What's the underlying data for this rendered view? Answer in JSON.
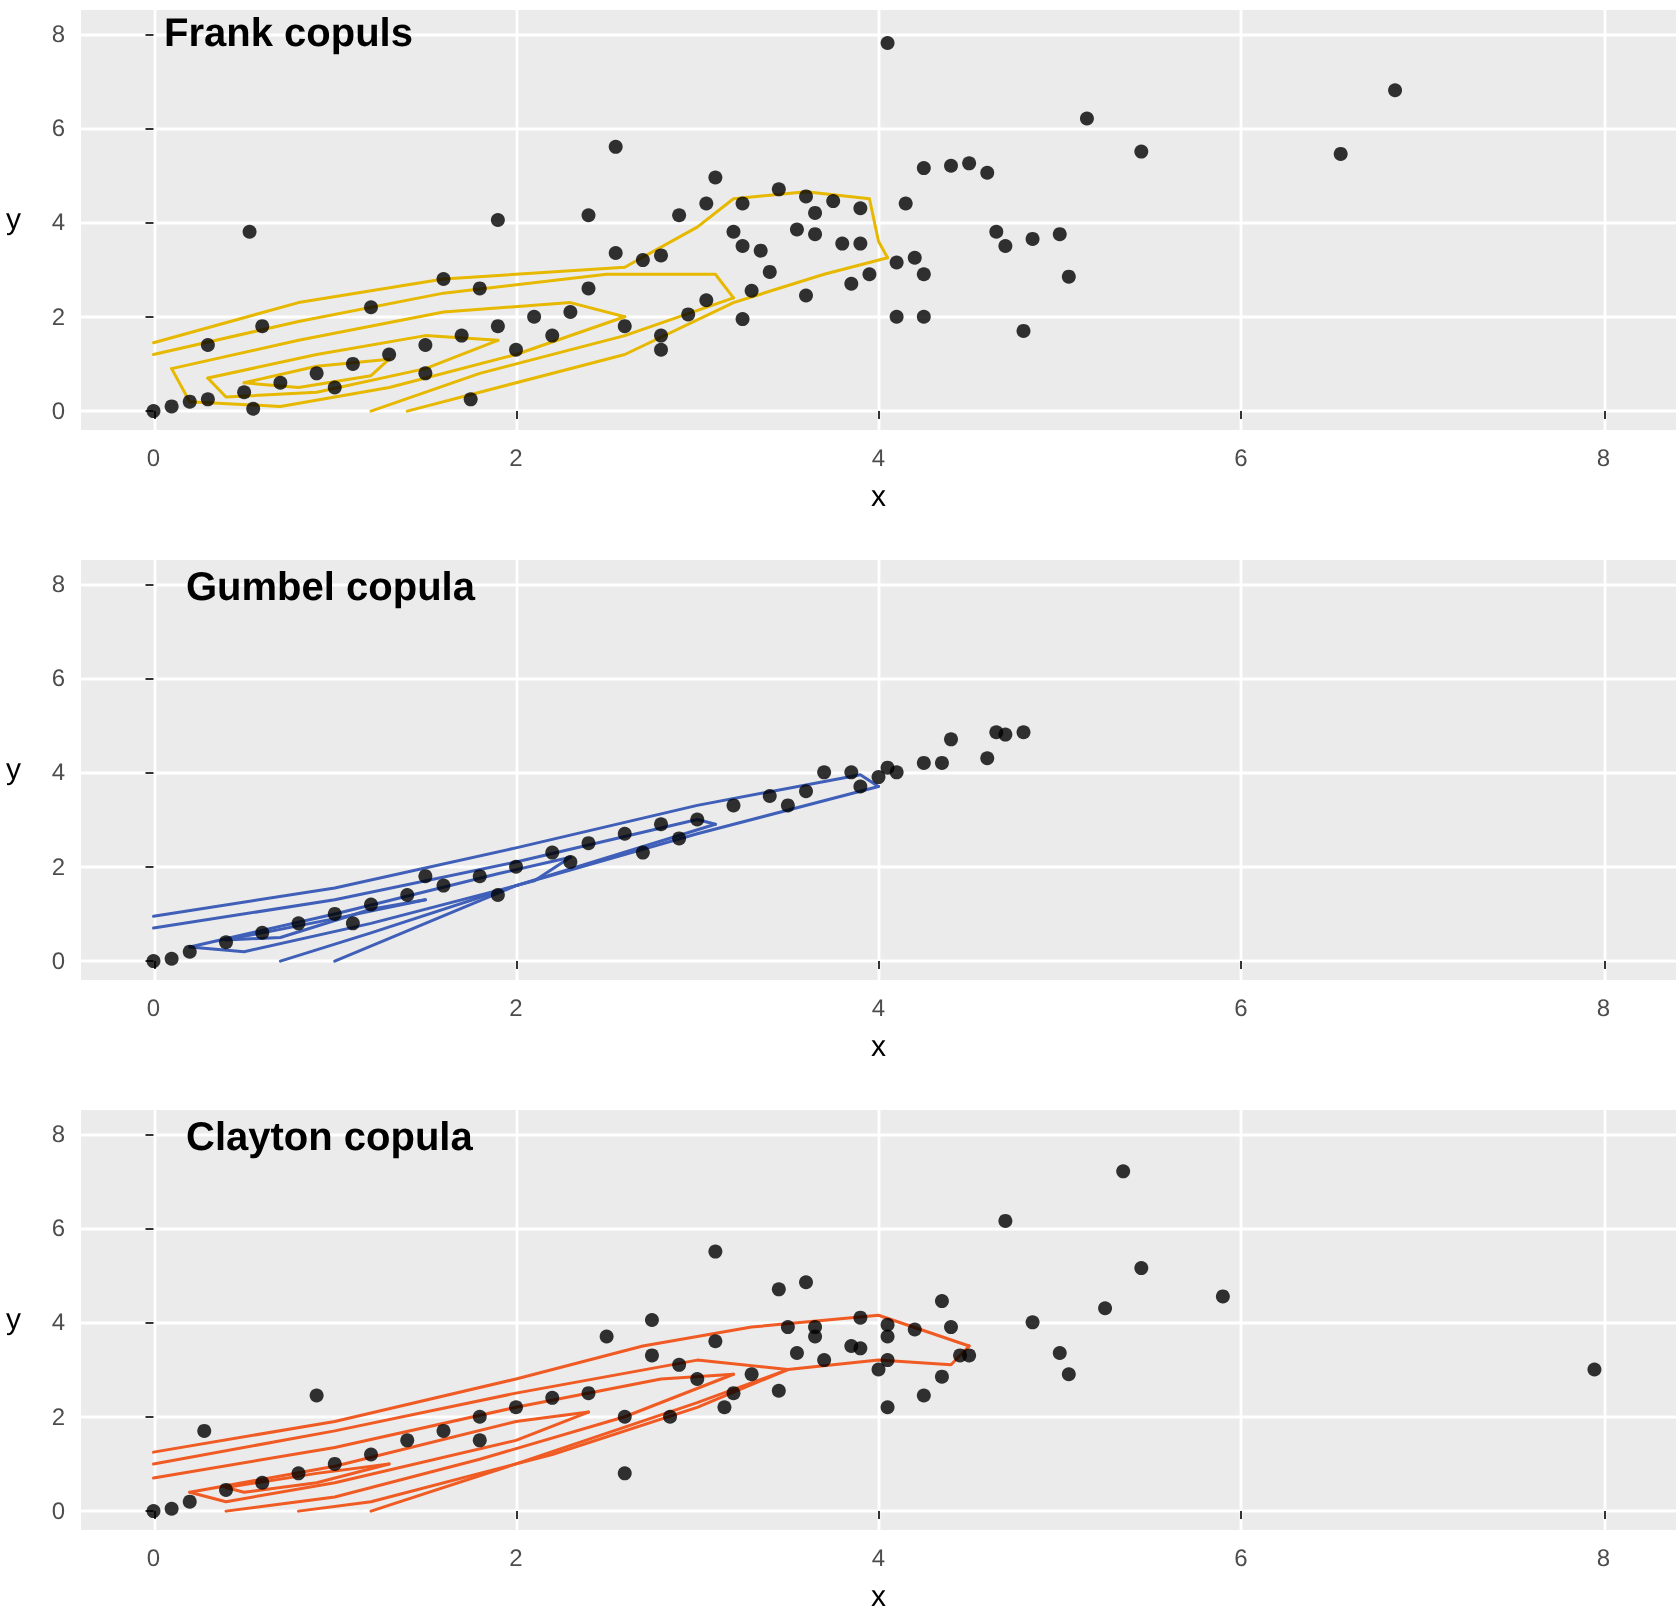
{
  "chart_data": [
    {
      "type": "scatter",
      "title": "Frank copuls",
      "xlabel": "x",
      "ylabel": "y",
      "xlim": [
        -0.4,
        8.4
      ],
      "ylim": [
        -0.4,
        8.5
      ],
      "xticks": [
        0,
        2,
        4,
        6,
        8
      ],
      "yticks": [
        0,
        2,
        4,
        6,
        8
      ],
      "grid": true,
      "marker": "circle",
      "series": [
        {
          "type": "line",
          "color": "#e7b800",
          "marker": "none",
          "x": [
            0,
            0.8,
            1.6,
            2.6,
            3.0,
            3.2,
            3.6,
            3.95,
            4.0,
            4.05
          ],
          "values": [
            1.45,
            2.3,
            2.8,
            3.05,
            3.9,
            4.5,
            4.65,
            4.5,
            3.6,
            3.25
          ]
        },
        {
          "type": "line",
          "color": "#e7b800",
          "marker": "none",
          "x": [
            1.4,
            2.6,
            3.2,
            3.7,
            4.05
          ],
          "values": [
            0.0,
            1.2,
            2.3,
            2.9,
            3.25
          ]
        },
        {
          "type": "line",
          "color": "#e7b800",
          "marker": "none",
          "x": [
            0,
            0.8,
            1.6,
            2.5,
            3.1,
            3.2
          ],
          "values": [
            1.2,
            1.9,
            2.5,
            2.9,
            2.9,
            2.4
          ]
        },
        {
          "type": "line",
          "color": "#e7b800",
          "marker": "none",
          "x": [
            1.2,
            1.8,
            2.6,
            3.2
          ],
          "values": [
            0.0,
            0.8,
            1.6,
            2.4
          ]
        },
        {
          "type": "line",
          "color": "#e7b800",
          "marker": "none",
          "x": [
            0.1,
            0.8,
            1.6,
            2.3,
            2.6
          ],
          "values": [
            0.9,
            1.5,
            2.1,
            2.3,
            2.0
          ]
        },
        {
          "type": "line",
          "color": "#e7b800",
          "marker": "none",
          "x": [
            0.1,
            0.2,
            0.7,
            1.3,
            2.0,
            2.6
          ],
          "values": [
            0.9,
            0.2,
            0.1,
            0.5,
            1.2,
            2.0
          ]
        },
        {
          "type": "line",
          "color": "#e7b800",
          "marker": "none",
          "x": [
            0.3,
            0.9,
            1.5,
            1.9
          ],
          "values": [
            0.7,
            1.2,
            1.6,
            1.5
          ]
        },
        {
          "type": "line",
          "color": "#e7b800",
          "marker": "none",
          "x": [
            0.3,
            0.4,
            0.9,
            1.5,
            1.9
          ],
          "values": [
            0.7,
            0.3,
            0.4,
            0.9,
            1.5
          ]
        },
        {
          "type": "line",
          "color": "#e7b800",
          "marker": "none",
          "x": [
            0.5,
            0.9,
            1.3
          ],
          "values": [
            0.6,
            0.95,
            1.1
          ]
        },
        {
          "type": "line",
          "color": "#e7b800",
          "marker": "none",
          "x": [
            0.5,
            0.8,
            1.2,
            1.3
          ],
          "values": [
            0.6,
            0.5,
            0.75,
            1.1
          ]
        },
        {
          "color": "#000000",
          "x": [
            0.53,
            1.9,
            2.55,
            2.4,
            3.1,
            3.05,
            3.45,
            3.6,
            3.75,
            3.9,
            3.65,
            3.25,
            3.2,
            3.25,
            3.35,
            3.55,
            3.65,
            3.8,
            4.05,
            4.15,
            4.25,
            4.4,
            4.5,
            4.6,
            4.65,
            4.7,
            4.85,
            5.0,
            5.05,
            4.8,
            4.1,
            4.25,
            4.25,
            4.1,
            4.2,
            3.9,
            3.95,
            3.85,
            3.6,
            3.4,
            3.3,
            3.25,
            3.05,
            2.95,
            2.8,
            2.8,
            2.6,
            2.55,
            2.7,
            2.8,
            2.9,
            5.15,
            5.45,
            6.55,
            6.85,
            1.75,
            0.0,
            0.1,
            0.3,
            0.5,
            0.7,
            0.9,
            1.1,
            1.3,
            1.5,
            1.7,
            1.9,
            2.1,
            2.3,
            0.6,
            0.3,
            1.2,
            1.6,
            1.0,
            1.5,
            2.0,
            0.55,
            0.2,
            1.8,
            2.4,
            2.2
          ],
          "values": [
            3.8,
            4.05,
            5.6,
            4.15,
            4.95,
            4.4,
            4.7,
            4.55,
            4.45,
            4.3,
            4.2,
            4.4,
            3.8,
            3.5,
            3.4,
            3.85,
            3.75,
            3.55,
            7.8,
            4.4,
            5.15,
            5.2,
            5.25,
            5.05,
            3.8,
            3.5,
            3.65,
            3.75,
            2.85,
            1.7,
            2.0,
            2.0,
            2.9,
            3.15,
            3.25,
            3.55,
            2.9,
            2.7,
            2.45,
            2.95,
            2.55,
            1.95,
            2.35,
            2.05,
            1.6,
            1.3,
            1.8,
            3.35,
            3.2,
            3.3,
            4.15,
            6.2,
            5.5,
            5.45,
            6.8,
            0.25,
            0.0,
            0.1,
            0.25,
            0.4,
            0.6,
            0.8,
            1.0,
            1.2,
            1.4,
            1.6,
            1.8,
            2.0,
            2.1,
            1.8,
            1.4,
            2.2,
            2.8,
            0.5,
            0.8,
            1.3,
            0.05,
            0.2,
            2.6,
            2.6,
            1.6
          ]
        }
      ]
    },
    {
      "type": "scatter",
      "title": "Gumbel copula",
      "xlabel": "x",
      "ylabel": "y",
      "xlim": [
        -0.4,
        8.4
      ],
      "ylim": [
        -0.4,
        8.5
      ],
      "xticks": [
        0,
        2,
        4,
        6,
        8
      ],
      "yticks": [
        0,
        2,
        4,
        6,
        8
      ],
      "grid": true,
      "marker": "circle",
      "series": [
        {
          "type": "line",
          "color": "#3f5fb8",
          "marker": "none",
          "x": [
            0,
            1,
            2,
            3,
            3.9,
            4.0
          ],
          "values": [
            0.95,
            1.55,
            2.4,
            3.3,
            3.95,
            3.7
          ]
        },
        {
          "type": "line",
          "color": "#3f5fb8",
          "marker": "none",
          "x": [
            1.0,
            1.5,
            2.0,
            3.0,
            4.0
          ],
          "values": [
            0.0,
            0.8,
            1.6,
            2.7,
            3.7
          ]
        },
        {
          "type": "line",
          "color": "#3f5fb8",
          "marker": "none",
          "x": [
            0,
            1,
            2,
            3,
            3.1
          ],
          "values": [
            0.7,
            1.3,
            2.1,
            3.0,
            2.9
          ]
        },
        {
          "type": "line",
          "color": "#3f5fb8",
          "marker": "none",
          "x": [
            0.7,
            1.2,
            2.0,
            3.1
          ],
          "values": [
            0.0,
            0.6,
            1.6,
            2.9
          ]
        },
        {
          "type": "line",
          "color": "#3f5fb8",
          "marker": "none",
          "x": [
            0.2,
            1.0,
            1.9,
            2.3
          ],
          "values": [
            0.3,
            1.0,
            1.85,
            2.2
          ]
        },
        {
          "type": "line",
          "color": "#3f5fb8",
          "marker": "none",
          "x": [
            0.2,
            0.5,
            1.2,
            2.1,
            2.3
          ],
          "values": [
            0.3,
            0.2,
            0.8,
            1.7,
            2.2
          ]
        },
        {
          "type": "line",
          "color": "#3f5fb8",
          "marker": "none",
          "x": [
            0.4,
            1.0,
            1.5
          ],
          "values": [
            0.45,
            0.9,
            1.3
          ]
        },
        {
          "type": "line",
          "color": "#3f5fb8",
          "marker": "none",
          "x": [
            0.4,
            0.7,
            1.2,
            1.5
          ],
          "values": [
            0.45,
            0.5,
            1.1,
            1.3
          ]
        },
        {
          "color": "#000000",
          "x": [
            4.8,
            4.65,
            4.7,
            4.6,
            4.4,
            4.35,
            4.25,
            4.1,
            4.05,
            4.0,
            3.9,
            3.85,
            3.7,
            3.6,
            3.4,
            3.2,
            3.0,
            2.9,
            2.8,
            2.6,
            2.4,
            2.2,
            2.0,
            1.8,
            1.6,
            1.4,
            1.2,
            1.0,
            0.8,
            0.6,
            0.4,
            0.2,
            0,
            1.9,
            2.7,
            1.5,
            3.5,
            0.1,
            1.1,
            2.3
          ],
          "values": [
            4.85,
            4.85,
            4.8,
            4.3,
            4.7,
            4.2,
            4.2,
            4.0,
            4.1,
            3.9,
            3.7,
            4.0,
            4.0,
            3.6,
            3.5,
            3.3,
            3.0,
            2.6,
            2.9,
            2.7,
            2.5,
            2.3,
            2.0,
            1.8,
            1.6,
            1.4,
            1.2,
            1.0,
            0.8,
            0.6,
            0.4,
            0.2,
            0,
            1.4,
            2.3,
            1.8,
            3.3,
            0.05,
            0.8,
            2.1
          ]
        }
      ]
    },
    {
      "type": "scatter",
      "title": "Clayton copula",
      "xlabel": "x",
      "ylabel": "y",
      "xlim": [
        -0.4,
        8.4
      ],
      "ylim": [
        -0.4,
        8.5
      ],
      "xticks": [
        0,
        2,
        4,
        6,
        8
      ],
      "yticks": [
        0,
        2,
        4,
        6,
        8
      ],
      "grid": true,
      "marker": "circle",
      "series": [
        {
          "type": "line",
          "color": "#f05a23",
          "marker": "none",
          "x": [
            0,
            1,
            2,
            2.7,
            3.3,
            4.0,
            4.5
          ],
          "values": [
            1.25,
            1.9,
            2.8,
            3.5,
            3.9,
            4.15,
            3.5
          ]
        },
        {
          "type": "line",
          "color": "#f05a23",
          "marker": "none",
          "x": [
            1.2,
            2.0,
            3.0,
            3.5,
            4.0,
            4.4,
            4.5
          ],
          "values": [
            0.0,
            1.0,
            2.3,
            3.0,
            3.2,
            3.1,
            3.5
          ]
        },
        {
          "type": "line",
          "color": "#f05a23",
          "marker": "none",
          "x": [
            0,
            1,
            2,
            3,
            3.5
          ],
          "values": [
            1.0,
            1.7,
            2.5,
            3.2,
            3.0
          ]
        },
        {
          "type": "line",
          "color": "#f05a23",
          "marker": "none",
          "x": [
            0.8,
            1.2,
            2.2,
            3.0,
            3.5
          ],
          "values": [
            0.0,
            0.2,
            1.2,
            2.2,
            3.0
          ]
        },
        {
          "type": "line",
          "color": "#f05a23",
          "marker": "none",
          "x": [
            0,
            1,
            2,
            2.8,
            3.2
          ],
          "values": [
            0.7,
            1.35,
            2.2,
            2.8,
            2.9
          ]
        },
        {
          "type": "line",
          "color": "#f05a23",
          "marker": "none",
          "x": [
            0.4,
            1.0,
            1.8,
            2.6,
            3.2
          ],
          "values": [
            0.0,
            0.3,
            1.1,
            2.0,
            2.9
          ]
        },
        {
          "type": "line",
          "color": "#f05a23",
          "marker": "none",
          "x": [
            0.2,
            1,
            2,
            2.4
          ],
          "values": [
            0.4,
            0.95,
            1.9,
            2.1
          ]
        },
        {
          "type": "line",
          "color": "#f05a23",
          "marker": "none",
          "x": [
            0.2,
            0.4,
            1.0,
            2.0,
            2.4
          ],
          "values": [
            0.4,
            0.2,
            0.6,
            1.5,
            2.1
          ]
        },
        {
          "type": "line",
          "color": "#f05a23",
          "marker": "none",
          "x": [
            0.4,
            0.9,
            1.3
          ],
          "values": [
            0.5,
            0.8,
            1.0
          ]
        },
        {
          "type": "line",
          "color": "#f05a23",
          "marker": "none",
          "x": [
            0.4,
            0.5,
            0.9,
            1.3
          ],
          "values": [
            0.5,
            0.4,
            0.6,
            1.0
          ]
        },
        {
          "color": "#000000",
          "x": [
            0.28,
            0.9,
            2.6,
            2.75,
            3.1,
            3.45,
            3.6,
            3.5,
            3.55,
            3.65,
            3.65,
            3.7,
            3.85,
            3.9,
            3.9,
            4.0,
            4.05,
            4.05,
            4.05,
            4.05,
            4.2,
            4.25,
            4.35,
            4.4,
            4.35,
            4.45,
            4.5,
            4.7,
            4.85,
            5.0,
            5.05,
            5.25,
            5.35,
            5.45,
            5.9,
            7.95,
            3.45,
            3.3,
            3.2,
            3.15,
            3.0,
            2.85,
            2.75,
            2.5,
            2.4,
            2.2,
            2.0,
            1.8,
            1.6,
            1.4,
            1.2,
            1.0,
            0.8,
            0.6,
            0.4,
            0.2,
            0,
            0.1,
            3.1,
            2.9,
            2.6,
            1.8
          ],
          "values": [
            1.7,
            2.45,
            0.8,
            4.05,
            5.5,
            4.7,
            4.85,
            3.9,
            3.35,
            3.9,
            3.7,
            3.2,
            3.5,
            3.45,
            4.1,
            3.0,
            3.2,
            3.95,
            3.7,
            2.2,
            3.85,
            2.45,
            4.45,
            3.9,
            2.85,
            3.3,
            3.3,
            6.15,
            4.0,
            3.35,
            2.9,
            4.3,
            7.2,
            5.15,
            4.55,
            3.0,
            2.55,
            2.9,
            2.5,
            2.2,
            2.8,
            2.0,
            3.3,
            3.7,
            2.5,
            2.4,
            2.2,
            2.0,
            1.7,
            1.5,
            1.2,
            1.0,
            0.8,
            0.6,
            0.45,
            0.2,
            0,
            0.05,
            3.6,
            3.1,
            2.0,
            1.5
          ]
        }
      ]
    }
  ]
}
